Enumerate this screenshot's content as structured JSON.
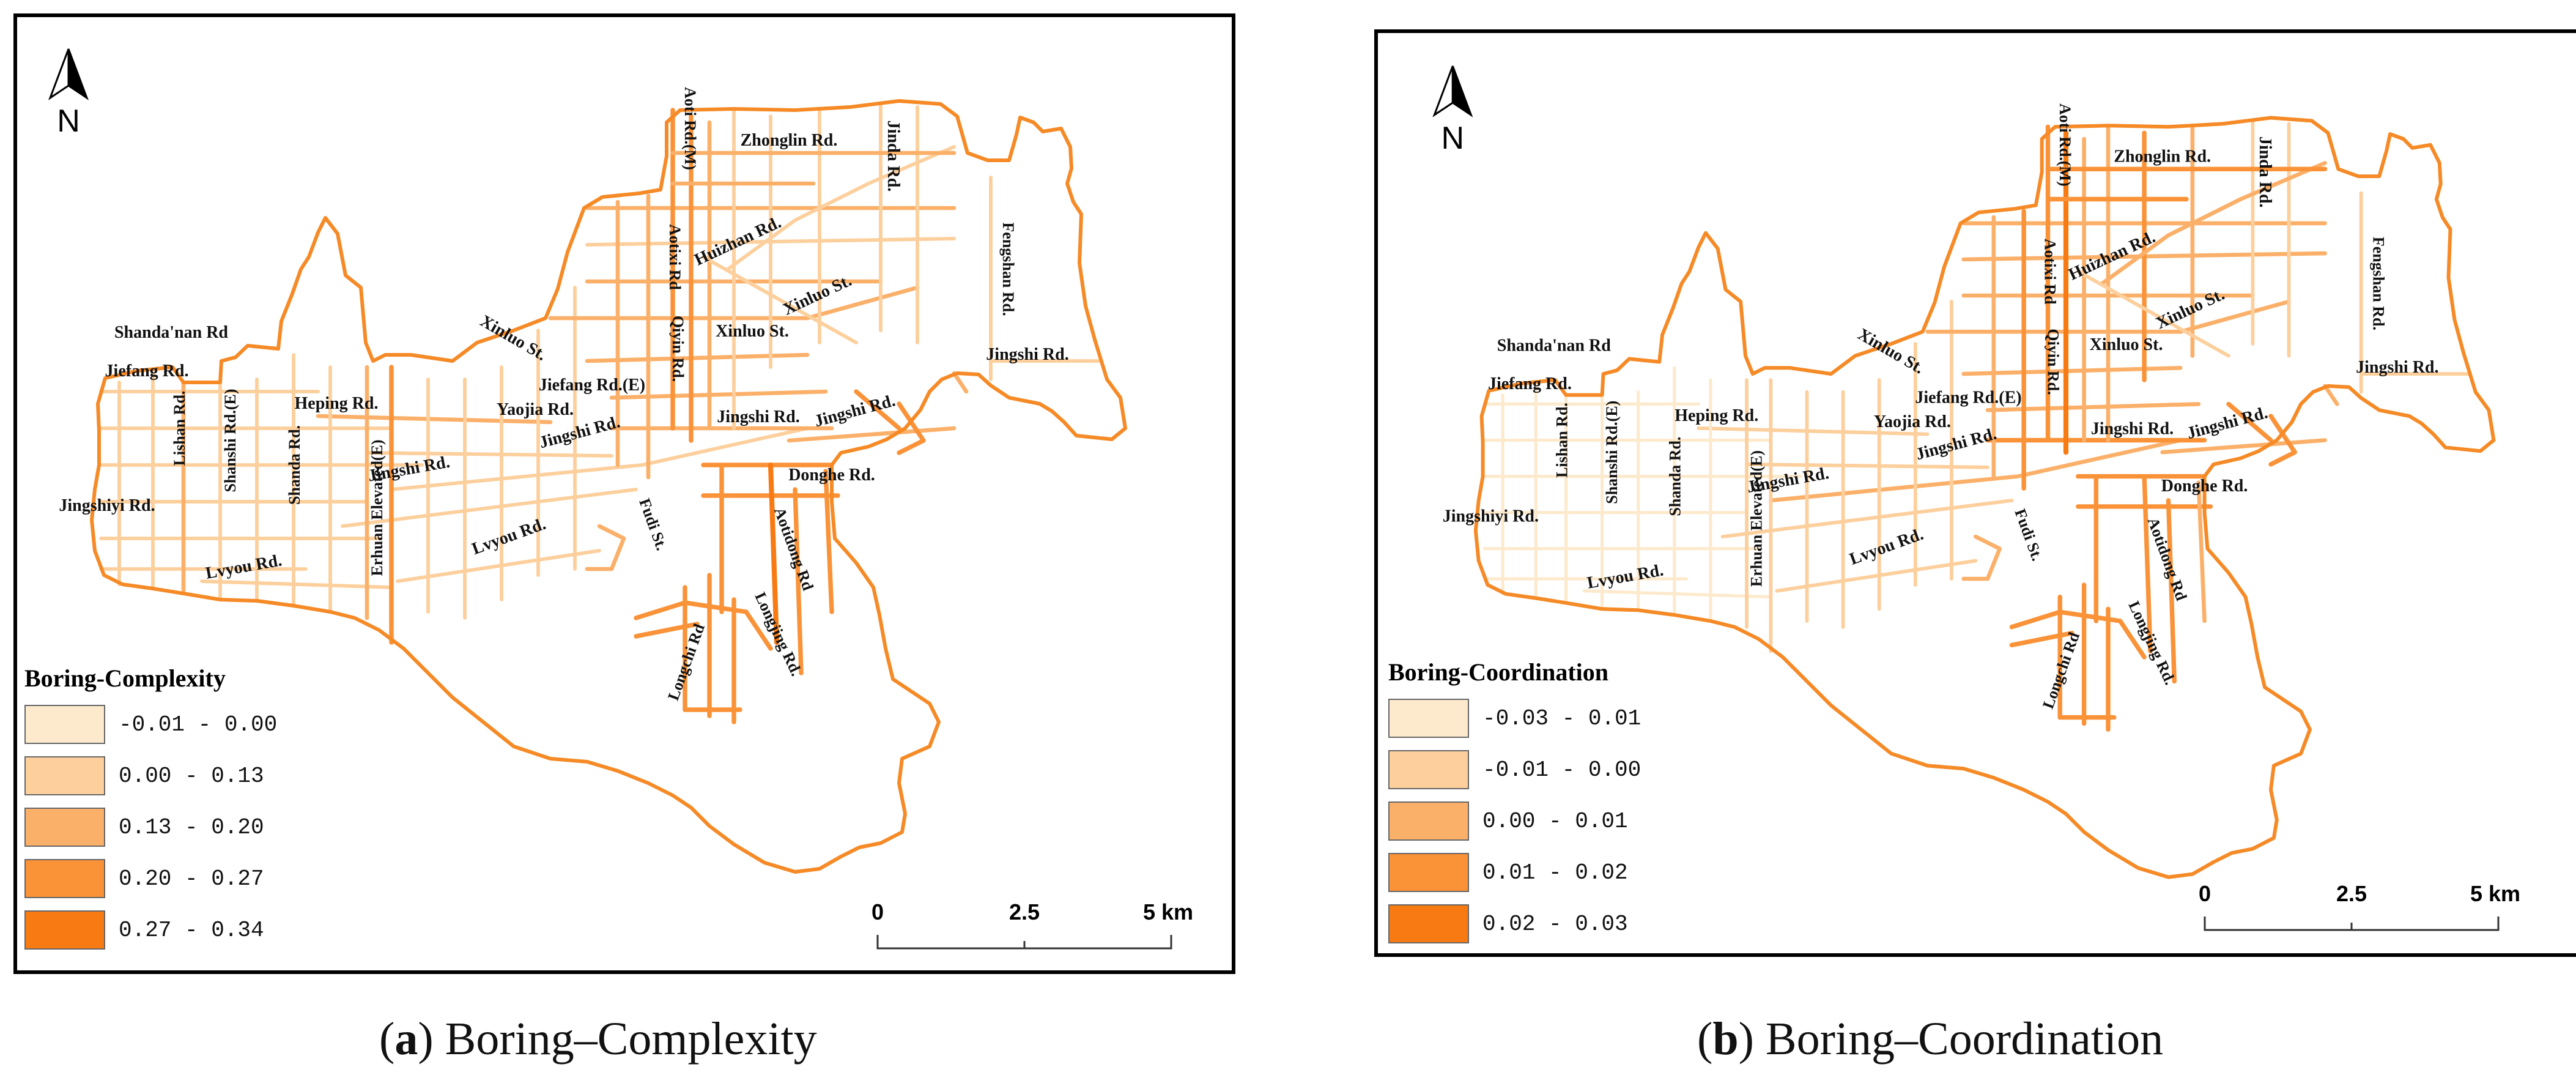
{
  "panels": [
    {
      "id": "a",
      "caption_prefix": "(",
      "caption_letter": "a",
      "caption_title": ") Boring–Complexity",
      "north": "N",
      "legend": {
        "title": "Boring-Complexity",
        "classes": [
          {
            "label": "-0.01 - 0.00",
            "color": "#FDE9CC"
          },
          {
            "label": "0.00 - 0.13",
            "color": "#FCCF9C"
          },
          {
            "label": "0.13 - 0.20",
            "color": "#FBB06A"
          },
          {
            "label": "0.20 - 0.27",
            "color": "#FA9238"
          },
          {
            "label": "0.27 - 0.34",
            "color": "#F87A12"
          }
        ]
      },
      "scale": {
        "labels": [
          "0",
          "2.5",
          "5 km"
        ]
      },
      "roads": [
        "Zhonglin Rd.",
        "Jinda Rd.",
        "Aoti Rd.(M)",
        "Huizhan Rd.",
        "Aotixi Rd",
        "Fengshan Rd.",
        "Xinluo St.",
        "Xinluo St.",
        "Xinluo St.",
        "Qiyin Rd.",
        "Shanda'nan Rd",
        "Jiefang Rd.",
        "Heping Rd.",
        "Yaojia Rd.",
        "Jiefang Rd.(E)",
        "Jingshi Rd.",
        "Jingshi Rd.",
        "Jingshi Rd.",
        "Jingshi Rd.",
        "Jingshi Rd.",
        "Lishan Rd.",
        "Shanshi Rd.(E)",
        "Shanda Rd.",
        "Erhuan Elevated(E)",
        "Jingshiyi Rd.",
        "Lvyou Rd.",
        "Lvyou Rd.",
        "Fudi St.",
        "Donghe Rd.",
        "Aotidong Rd",
        "Longchi Rd",
        "Longjing Rd."
      ]
    },
    {
      "id": "b",
      "caption_prefix": "(",
      "caption_letter": "b",
      "caption_title": ") Boring–Coordination",
      "north": "N",
      "legend": {
        "title": "Boring-Coordination",
        "classes": [
          {
            "label": "-0.03 - 0.01",
            "color": "#FDE9CC"
          },
          {
            "label": "-0.01 - 0.00",
            "color": "#FCCF9C"
          },
          {
            "label": "0.00 - 0.01",
            "color": "#FBB06A"
          },
          {
            "label": "0.01 - 0.02",
            "color": "#FA9238"
          },
          {
            "label": "0.02 - 0.03",
            "color": "#F87A12"
          }
        ]
      },
      "scale": {
        "labels": [
          "0",
          "2.5",
          "5 km"
        ]
      },
      "roads": [
        "Zhonglin Rd.",
        "Jinda Rd.",
        "Aoti Rd.(M)",
        "Huizhan Rd.",
        "Aotixi Rd",
        "Fengshan Rd.",
        "Xinluo St.",
        "Xinluo St.",
        "Xinluo St.",
        "Qiyin Rd.",
        "Shanda'nan Rd",
        "Jiefang Rd.",
        "Heping Rd.",
        "Yaojia Rd.",
        "Jiefang Rd.(E)",
        "Jingshi Rd.",
        "Jingshi Rd.",
        "Jingshi Rd.",
        "Jingshi Rd.",
        "Jingshi Rd.",
        "Lishan Rd.",
        "Shanshi Rd.(E)",
        "Shanda Rd.",
        "Erhuan Elevated(E)",
        "Jingshiyi Rd.",
        "Lvyou Rd.",
        "Lvyou Rd.",
        "Fudi St.",
        "Donghe Rd.",
        "Aotidong Rd",
        "Longchi Rd",
        "Longjing Rd."
      ]
    }
  ]
}
